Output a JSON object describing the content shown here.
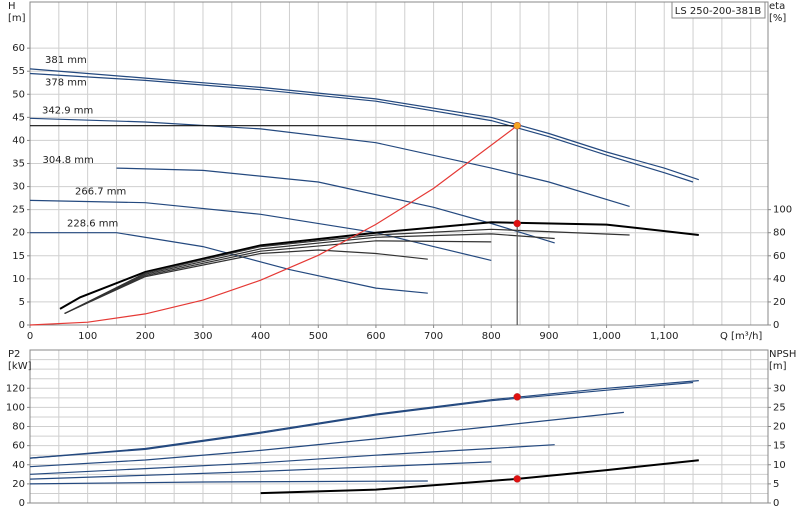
{
  "chart_data": [
    {
      "type": "line",
      "title": "LS 250-200-381B",
      "ylabel": [
        "H",
        "[m]"
      ],
      "y2label": [
        "eta",
        "[%]"
      ],
      "xlabel": "Q [m³/h]",
      "xlim": [
        0,
        1280
      ],
      "ylim": [
        0,
        70
      ],
      "y2lim": [
        0,
        280
      ],
      "xticks": [
        0,
        100,
        200,
        300,
        400,
        500,
        600,
        700,
        800,
        900,
        {
          "value": 1000,
          "label": "1,000"
        },
        {
          "value": 1100,
          "label": "1,100"
        }
      ],
      "xgrid": [
        0,
        50,
        100,
        150,
        200,
        250,
        300,
        350,
        400,
        450,
        500,
        550,
        600,
        650,
        700,
        750,
        800,
        850,
        900,
        950,
        1000,
        1050,
        1100,
        1150,
        1200,
        1250
      ],
      "yticks": [
        0,
        5,
        10,
        15,
        20,
        25,
        30,
        35,
        40,
        45,
        50,
        55,
        60
      ],
      "y2ticks": [
        0,
        20,
        40,
        60,
        80,
        100
      ],
      "grid": true,
      "series": [
        {
          "name": "381 mm",
          "color": "#24497f",
          "x": [
            0,
            200,
            400,
            600,
            800,
            900,
            1000,
            1100,
            1160
          ],
          "values": [
            55.5,
            53.5,
            51.5,
            49,
            45,
            41.5,
            37.5,
            34,
            31.5
          ]
        },
        {
          "name": "378 mm",
          "color": "#24497f",
          "x": [
            0,
            200,
            400,
            600,
            800,
            900,
            1000,
            1100,
            1150
          ],
          "values": [
            54.5,
            53,
            51,
            48.5,
            44.3,
            40.8,
            36.8,
            33,
            31
          ]
        },
        {
          "name": "342.9 mm",
          "color": "#24497f",
          "x": [
            0,
            200,
            400,
            600,
            800,
            900,
            1040
          ],
          "values": [
            44.8,
            44,
            42.5,
            39.5,
            34,
            31,
            25.7
          ]
        },
        {
          "name": "304.8 mm",
          "color": "#24497f",
          "x": [
            150,
            300,
            500,
            700,
            800,
            910
          ],
          "values": [
            34,
            33.5,
            31,
            25.5,
            22,
            17.8
          ]
        },
        {
          "name": "266.7 mm",
          "color": "#24497f",
          "x": [
            0,
            200,
            400,
            600,
            700,
            800
          ],
          "values": [
            27,
            26.5,
            24,
            20,
            17,
            14
          ]
        },
        {
          "name": "228.6 mm",
          "color": "#24497f",
          "x": [
            0,
            150,
            300,
            450,
            600,
            690
          ],
          "values": [
            20,
            20,
            17,
            12,
            8,
            6.9
          ]
        },
        {
          "color": "#000000",
          "axis": "y2",
          "x": [
            52,
            87,
            200,
            400,
            600,
            800,
            1000,
            1160
          ],
          "values": [
            14,
            24,
            46,
            69,
            80,
            89,
            87,
            78
          ]
        },
        {
          "color": "#333333",
          "axis": "y2",
          "x": [
            60,
            200,
            400,
            600,
            800,
            1040
          ],
          "values": [
            10,
            45,
            68,
            78,
            83,
            78
          ]
        },
        {
          "color": "#333333",
          "axis": "y2",
          "x": [
            60,
            200,
            400,
            600,
            800,
            910
          ],
          "values": [
            10,
            44,
            66,
            76,
            79,
            75
          ]
        },
        {
          "color": "#333333",
          "axis": "y2",
          "x": [
            60,
            200,
            400,
            600,
            800
          ],
          "values": [
            10,
            43,
            64,
            73,
            72
          ]
        },
        {
          "color": "#333333",
          "axis": "y2",
          "x": [
            60,
            200,
            400,
            500,
            600,
            690
          ],
          "values": [
            10,
            42,
            62,
            65,
            62,
            57
          ]
        },
        {
          "color": "#e53935",
          "x": [
            0,
            100,
            200,
            300,
            400,
            500,
            600,
            700,
            845
          ],
          "values": [
            0,
            0.6,
            2.4,
            5.4,
            9.7,
            15.1,
            21.8,
            29.6,
            43.2
          ]
        },
        {
          "color": "#111111",
          "x": [
            0,
            845
          ],
          "values": [
            43.2,
            43.2
          ]
        },
        {
          "color": "#555555",
          "x": [
            845,
            845
          ],
          "values": [
            0,
            43.2
          ]
        }
      ],
      "points": [
        {
          "x": 845,
          "y": 43.2,
          "color": "#f5a623"
        },
        {
          "x": 845,
          "y": 88,
          "color": "#e01010",
          "axis": "y2"
        }
      ]
    },
    {
      "type": "line",
      "ylabel": [
        "P2",
        "[kW]"
      ],
      "y2label": [
        "NPSH",
        "[m]"
      ],
      "xlim": [
        0,
        1280
      ],
      "ylim": [
        0,
        160
      ],
      "y2lim": [
        0,
        40
      ],
      "xgrid": [
        0,
        50,
        100,
        150,
        200,
        250,
        300,
        350,
        400,
        450,
        500,
        550,
        600,
        650,
        700,
        750,
        800,
        850,
        900,
        950,
        1000,
        1050,
        1100,
        1150,
        1200,
        1250
      ],
      "yticks": [
        0,
        20,
        40,
        60,
        80,
        100,
        120
      ],
      "ygrid": [
        0,
        10,
        20,
        30,
        40,
        50,
        60,
        70,
        80,
        90,
        100,
        110,
        120,
        130,
        140,
        150,
        160
      ],
      "y2ticks": [
        0,
        5,
        10,
        15,
        20,
        25,
        30
      ],
      "grid": true,
      "series": [
        {
          "color": "#24497f",
          "x": [
            0,
            200,
            400,
            600,
            800,
            1000,
            1160
          ],
          "values": [
            47,
            57,
            74,
            93,
            108,
            120,
            128
          ]
        },
        {
          "color": "#24497f",
          "x": [
            0,
            200,
            400,
            600,
            800,
            1000,
            1150
          ],
          "values": [
            47,
            56,
            73,
            92,
            107,
            118,
            126
          ]
        },
        {
          "color": "#24497f",
          "x": [
            0,
            200,
            400,
            600,
            800,
            1030
          ],
          "values": [
            38,
            45,
            55,
            67,
            80,
            94.7
          ]
        },
        {
          "color": "#24497f",
          "x": [
            0,
            200,
            400,
            600,
            800,
            910
          ],
          "values": [
            30,
            36,
            42,
            50,
            57,
            61
          ]
        },
        {
          "color": "#24497f",
          "x": [
            0,
            200,
            400,
            600,
            800
          ],
          "values": [
            25,
            29,
            33,
            38,
            43
          ]
        },
        {
          "color": "#24497f",
          "x": [
            0,
            300,
            500,
            690
          ],
          "values": [
            20,
            22,
            22.5,
            23
          ]
        },
        {
          "color": "#000000",
          "axis": "y2",
          "x": [
            400,
            600,
            845,
            1000,
            1160
          ],
          "values": [
            2.6,
            3.5,
            6.3,
            8.6,
            11.2
          ]
        }
      ],
      "points": [
        {
          "x": 845,
          "y": 111,
          "color": "#e01010"
        },
        {
          "x": 845,
          "y": 6.3,
          "color": "#e01010",
          "axis": "y2"
        }
      ]
    }
  ]
}
